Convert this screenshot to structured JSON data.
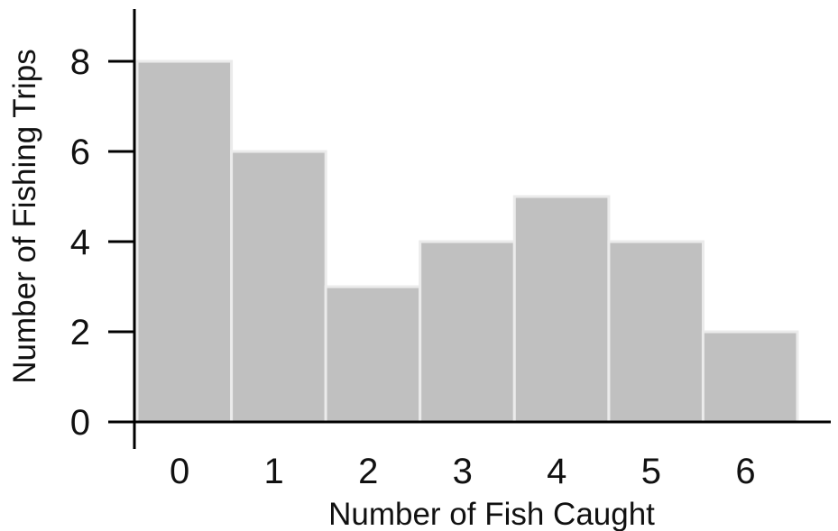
{
  "chart_data": {
    "type": "bar",
    "title": "",
    "xlabel": "Number of Fish Caught",
    "ylabel": "Number of Fishing Trips",
    "categories": [
      "0",
      "1",
      "2",
      "3",
      "4",
      "5",
      "6"
    ],
    "values": [
      8,
      6,
      3,
      4,
      5,
      4,
      2
    ],
    "yticks": [
      "0",
      "2",
      "4",
      "6",
      "8"
    ],
    "ylim": [
      0,
      8
    ],
    "grid": false,
    "legend": "none",
    "bar_color": "#c0c0c0",
    "bar_edge_color": "#ebebeb",
    "axis_color": "#000000"
  }
}
